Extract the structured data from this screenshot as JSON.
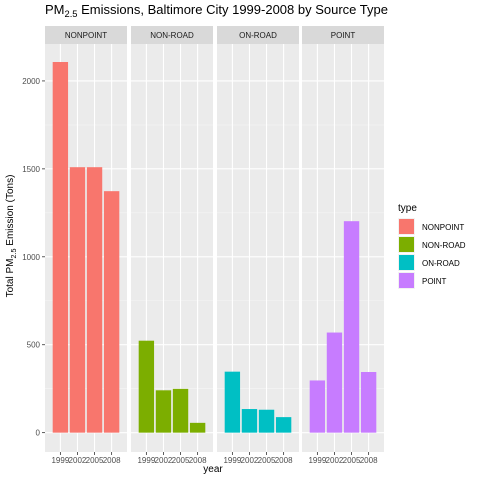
{
  "chart_data": {
    "type": "bar",
    "title": "PM2.5 Emissions, Baltimore City 1999-2008 by Source Type",
    "title_parts": {
      "pre": "PM",
      "sub": "2.5",
      "post": " Emissions, Baltimore City 1999-2008 by Source Type"
    },
    "xlabel": "year",
    "ylabel": "Total PM2.5 Emission (Tons)",
    "ylabel_parts": {
      "pre": "Total PM",
      "sub": "2.5",
      "post": " Emission (Tons)"
    },
    "categories": [
      "1999",
      "2002",
      "2005",
      "2008"
    ],
    "y_ticks": [
      0,
      500,
      1000,
      1500,
      2000
    ],
    "ylim": [
      -110,
      2210
    ],
    "grid": true,
    "legend_position": "right",
    "legend_title": "type",
    "series": [
      {
        "name": "NONPOINT",
        "color": "#F8766D",
        "values": [
          2107.6,
          1509.5,
          1509.5,
          1373.2
        ]
      },
      {
        "name": "NON-ROAD",
        "color": "#7CAE00",
        "values": [
          522.9,
          240.8,
          248.9,
          55.8
        ]
      },
      {
        "name": "ON-ROAD",
        "color": "#00BFC4",
        "values": [
          346.8,
          134.3,
          130.4,
          88.3
        ]
      },
      {
        "name": "POINT",
        "color": "#C77CFF",
        "values": [
          296.8,
          569.3,
          1202.5,
          344.9
        ]
      }
    ]
  }
}
